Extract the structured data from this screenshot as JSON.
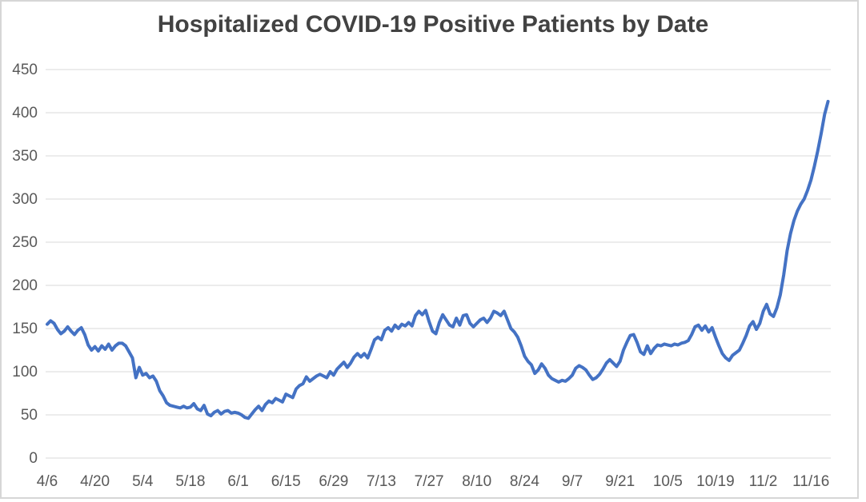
{
  "chart_data": {
    "type": "line",
    "title": "Hospitalized COVID-19 Positive Patients by Date",
    "xlabel": "",
    "ylabel": "",
    "ylim": [
      0,
      450
    ],
    "y_tick_step": 50,
    "y_tick_labels": [
      "0",
      "50",
      "100",
      "150",
      "200",
      "250",
      "300",
      "350",
      "400",
      "450"
    ],
    "x_tick_labels": [
      "4/6",
      "4/20",
      "5/4",
      "5/18",
      "6/1",
      "6/15",
      "6/29",
      "7/13",
      "7/27",
      "8/10",
      "8/24",
      "9/7",
      "9/21",
      "10/5",
      "10/19",
      "11/2",
      "11/16"
    ],
    "points_per_tick": 14,
    "x_frequency": "daily",
    "start_date": "4/6",
    "grid": "horizontal",
    "legend": "none",
    "colors": {
      "line": "#4472C4",
      "gridline": "#D9D9D9",
      "axis_text": "#595959",
      "title_text": "#424242"
    },
    "values": [
      155,
      159,
      156,
      149,
      144,
      147,
      152,
      147,
      143,
      148,
      151,
      143,
      131,
      125,
      129,
      124,
      130,
      126,
      132,
      125,
      130,
      133,
      133,
      130,
      123,
      116,
      93,
      105,
      96,
      98,
      93,
      95,
      89,
      78,
      72,
      64,
      61,
      60,
      59,
      58,
      60,
      58,
      59,
      63,
      57,
      55,
      61,
      51,
      49,
      53,
      55,
      51,
      54,
      55,
      52,
      53,
      52,
      50,
      47,
      46,
      51,
      56,
      60,
      55,
      62,
      66,
      64,
      69,
      67,
      65,
      74,
      72,
      70,
      80,
      84,
      86,
      94,
      89,
      92,
      95,
      97,
      95,
      93,
      100,
      96,
      103,
      107,
      111,
      105,
      110,
      117,
      121,
      117,
      121,
      116,
      126,
      137,
      140,
      137,
      148,
      151,
      147,
      154,
      150,
      155,
      153,
      157,
      153,
      165,
      170,
      166,
      171,
      158,
      147,
      144,
      157,
      166,
      160,
      154,
      152,
      162,
      154,
      165,
      166,
      156,
      152,
      156,
      160,
      162,
      157,
      162,
      170,
      168,
      165,
      170,
      160,
      150,
      146,
      140,
      130,
      118,
      112,
      108,
      98,
      102,
      109,
      104,
      96,
      92,
      90,
      88,
      90,
      89,
      92,
      96,
      104,
      107,
      105,
      102,
      96,
      91,
      93,
      97,
      103,
      110,
      114,
      110,
      106,
      112,
      125,
      134,
      142,
      143,
      134,
      123,
      120,
      130,
      121,
      127,
      131,
      130,
      132,
      131,
      130,
      132,
      131,
      133,
      134,
      136,
      143,
      152,
      154,
      148,
      153,
      146,
      151,
      140,
      130,
      121,
      116,
      113,
      119,
      122,
      125,
      133,
      142,
      153,
      158,
      149,
      156,
      170,
      178,
      167,
      164,
      174,
      189,
      212,
      240,
      260,
      275,
      286,
      294,
      300,
      310,
      322,
      338,
      356,
      376,
      398,
      413
    ]
  }
}
